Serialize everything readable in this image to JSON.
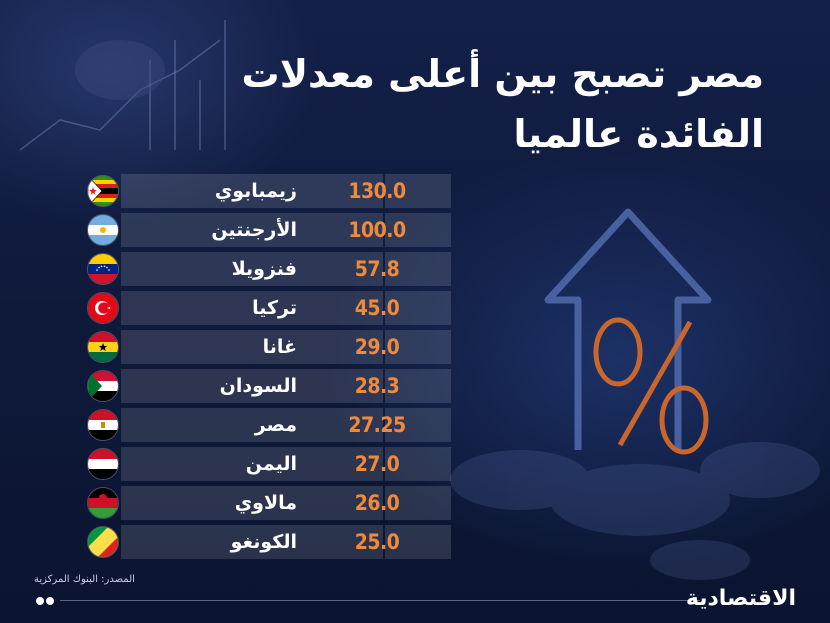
{
  "title": {
    "line1": "مصر تصبح بين أعلى معدلات",
    "line2": "الفائدة عالميا"
  },
  "rows": [
    {
      "country": "زيمبابوي",
      "value": "130.0",
      "flag": "zimbabwe-flag-icon"
    },
    {
      "country": "الأرجنتين",
      "value": "100.0",
      "flag": "argentina-flag-icon"
    },
    {
      "country": "فنزويلا",
      "value": "57.8",
      "flag": "venezuela-flag-icon"
    },
    {
      "country": "تركيا",
      "value": "45.0",
      "flag": "turkey-flag-icon"
    },
    {
      "country": "غانا",
      "value": "29.0",
      "flag": "ghana-flag-icon"
    },
    {
      "country": "السودان",
      "value": "28.3",
      "flag": "sudan-flag-icon"
    },
    {
      "country": "مصر",
      "value": "27.25",
      "flag": "egypt-flag-icon"
    },
    {
      "country": "اليمن",
      "value": "27.0",
      "flag": "yemen-flag-icon"
    },
    {
      "country": "مالاوي",
      "value": "26.0",
      "flag": "malawi-flag-icon"
    },
    {
      "country": "الكونغو",
      "value": "25.0",
      "flag": "congo-flag-icon"
    }
  ],
  "source": "المصدر: البنوك المركزية",
  "logo": "الاقتصادية",
  "colors": {
    "background": "#0f1a3c",
    "value_orange": "#f08a3a",
    "row_fill": "#2a3556",
    "text": "#ffffff"
  }
}
